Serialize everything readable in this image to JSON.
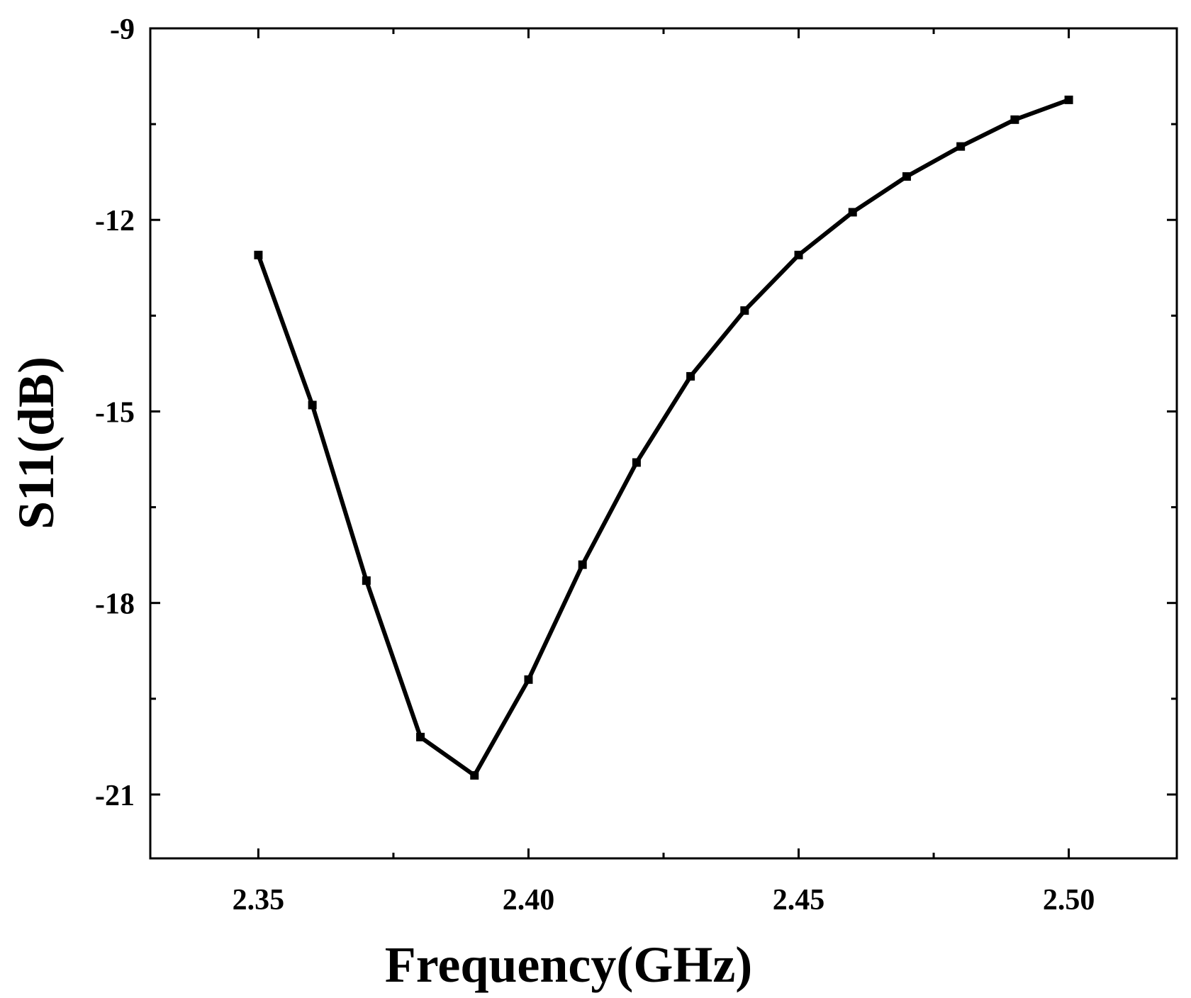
{
  "chart_data": {
    "type": "line",
    "title": "",
    "xlabel": "Frequency(GHz)",
    "ylabel": "S11(dB)",
    "xlim": [
      2.33,
      2.52
    ],
    "ylim": [
      -22,
      -9
    ],
    "x_ticks": [
      2.35,
      2.4,
      2.45,
      2.5
    ],
    "x_tick_labels": [
      "2.35",
      "2.40",
      "2.45",
      "2.50"
    ],
    "x_minor_ticks": [
      2.375,
      2.425,
      2.475
    ],
    "y_ticks": [
      -9,
      -12,
      -15,
      -18,
      -21
    ],
    "y_tick_labels": [
      "-9",
      "-12",
      "-15",
      "-18",
      "-21"
    ],
    "y_minor_ticks": [
      -10.5,
      -13.5,
      -16.5,
      -19.5
    ],
    "grid": false,
    "legend": "none",
    "series": [
      {
        "color": "#000000",
        "marker": "square",
        "x": [
          2.35,
          2.36,
          2.37,
          2.38,
          2.39,
          2.4,
          2.41,
          2.42,
          2.43,
          2.44,
          2.45,
          2.46,
          2.47,
          2.48,
          2.49,
          2.5
        ],
        "y": [
          -12.55,
          -14.9,
          -17.65,
          -20.1,
          -20.7,
          -19.2,
          -17.4,
          -15.8,
          -14.45,
          -13.42,
          -12.55,
          -11.88,
          -11.32,
          -10.85,
          -10.43,
          -10.12
        ]
      }
    ]
  }
}
